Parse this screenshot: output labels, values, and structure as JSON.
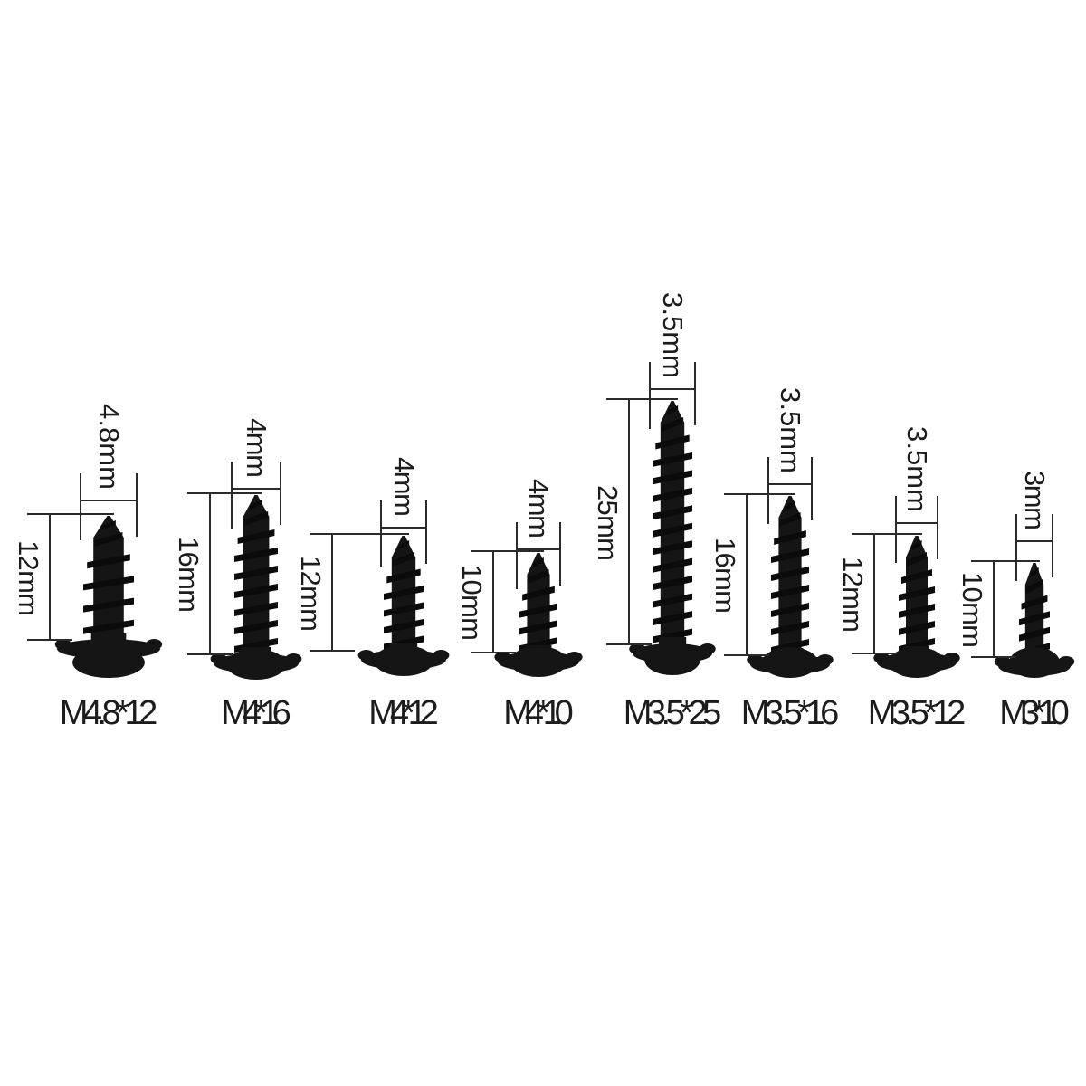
{
  "colors": {
    "background": "#ffffff",
    "screw": "#151515",
    "screw_ridge": "#0b0b0b",
    "dimension_line": "#2b2b2b",
    "label_text": "#1c1c1c"
  },
  "screws": [
    {
      "name": "M4.8*12",
      "diameter_label": "4.8mm",
      "length_label": "12mm",
      "diameter_mm": 4.8,
      "length_mm": 12
    },
    {
      "name": "M4*16",
      "diameter_label": "4mm",
      "length_label": "16mm",
      "diameter_mm": 4,
      "length_mm": 16
    },
    {
      "name": "M4*12",
      "diameter_label": "4mm",
      "length_label": "12mm",
      "diameter_mm": 4,
      "length_mm": 12
    },
    {
      "name": "M4*10",
      "diameter_label": "4mm",
      "length_label": "10mm",
      "diameter_mm": 4,
      "length_mm": 10
    },
    {
      "name": "M3.5*25",
      "diameter_label": "3.5mm",
      "length_label": "25mm",
      "diameter_mm": 3.5,
      "length_mm": 25
    },
    {
      "name": "M3.5*16",
      "diameter_label": "3.5mm",
      "length_label": "16mm",
      "diameter_mm": 3.5,
      "length_mm": 16
    },
    {
      "name": "M3.5*12",
      "diameter_label": "3.5mm",
      "length_label": "12mm",
      "diameter_mm": 3.5,
      "length_mm": 12
    },
    {
      "name": "M3*10",
      "diameter_label": "3mm",
      "length_label": "10mm",
      "diameter_mm": 3,
      "length_mm": 10
    }
  ]
}
